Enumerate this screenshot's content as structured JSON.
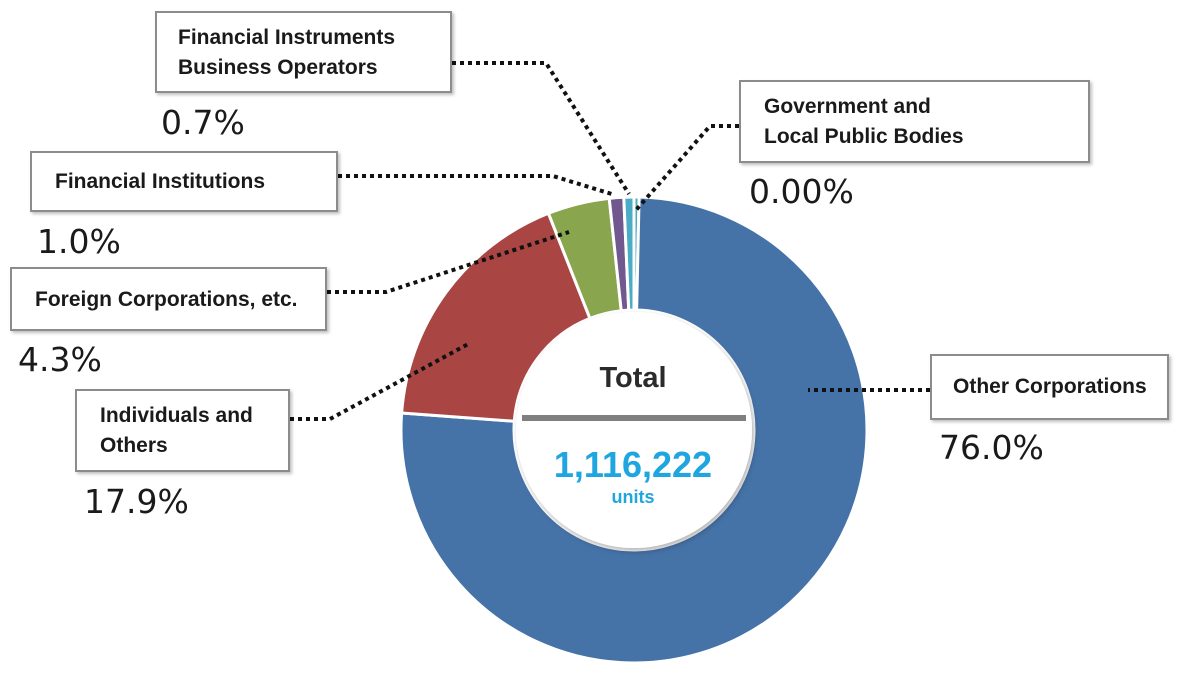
{
  "chart_data": {
    "type": "pie",
    "style": "donut",
    "center": {
      "title": "Total",
      "value": "1,116,222",
      "unit": "units"
    },
    "categories": [
      "Government and\nLocal Public Bodies",
      "Other Corporations",
      "Individuals and\nOthers",
      "Foreign Corporations, etc.",
      "Financial Institutions",
      "Financial Instruments\nBusiness Operators"
    ],
    "values": [
      0.0,
      76.0,
      17.9,
      4.3,
      1.0,
      0.7
    ],
    "value_labels": [
      "0.00%",
      "76.0%",
      "17.9%",
      "4.3%",
      "1.0%",
      "0.7%"
    ],
    "colors": [
      "#4bacc6",
      "#4572a7",
      "#a94644",
      "#89a54e",
      "#71588f",
      "#4bacc6"
    ]
  }
}
